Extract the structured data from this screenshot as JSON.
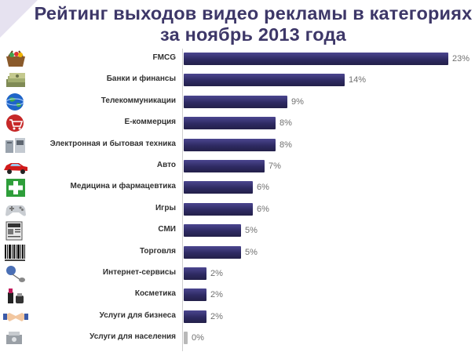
{
  "title": {
    "line1": "Рейтинг выходов видео рекламы в категориях",
    "line2": "за ноябрь 2013 года"
  },
  "chart_data": {
    "type": "bar",
    "orientation": "horizontal",
    "categories": [
      "FMCG",
      "Банки и финансы",
      "Телекоммуникации",
      "Е-коммерция",
      "Электронная и бытовая техника",
      "Авто",
      "Медицина и фармацевтика",
      "Игры",
      "СМИ",
      "Торговля",
      "Интернет-сервисы",
      "Косметика",
      "Услуги для бизнеса",
      "Услуги для населения"
    ],
    "values": [
      23,
      14,
      9,
      8,
      8,
      7,
      6,
      6,
      5,
      5,
      2,
      2,
      2,
      0
    ],
    "value_labels": [
      "23%",
      "14%",
      "9%",
      "8%",
      "8%",
      "7%",
      "6%",
      "6%",
      "5%",
      "5%",
      "2%",
      "2%",
      "2%",
      "0%"
    ],
    "icons": [
      "shopping-basket-icon",
      "money-stack-icon",
      "globe-icon",
      "shopping-cart-icon",
      "appliances-icon",
      "car-icon",
      "medical-cross-icon",
      "gamepad-icon",
      "newspaper-icon",
      "barcode-icon",
      "internet-mouse-icon",
      "cosmetics-icon",
      "handshake-icon",
      "services-icon"
    ],
    "xlim": [
      0,
      23
    ],
    "grid": false,
    "legend": "none",
    "colors": {
      "bar": "#2e2a62",
      "bar_zero": "#b9b9b9",
      "title": "#3d3768"
    }
  }
}
